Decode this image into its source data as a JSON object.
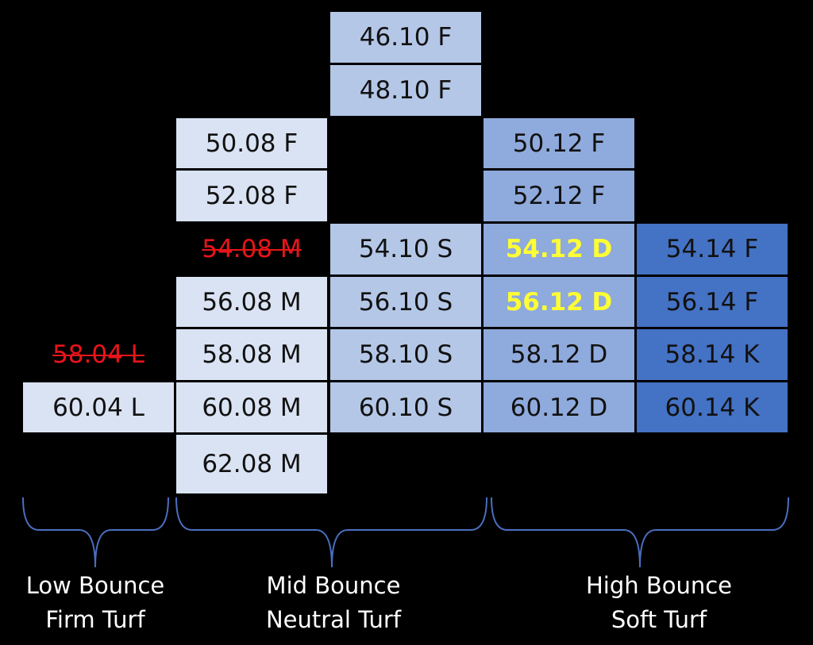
{
  "cells": [
    "46.10 F",
    "48.10 F",
    "50.08 F",
    "50.12 F",
    "52.08 F",
    "52.12 F",
    "54.08 M",
    "54.10 S",
    "54.12 D",
    "54.14 F",
    "56.08 M",
    "56.10 S",
    "56.12 D",
    "56.14 F",
    "58.04 L",
    "58.08 M",
    "58.10 S",
    "58.12 D",
    "58.14 K",
    "60.04 L",
    "60.08 M",
    "60.10 S",
    "60.12 D",
    "60.14 K",
    "62.08 M"
  ],
  "groups": [
    {
      "line1": "Low Bounce",
      "line2": "Firm Turf"
    },
    {
      "line1": "Mid Bounce",
      "line2": "Neutral Turf"
    },
    {
      "line1": "High Bounce",
      "line2": "Soft Turf"
    }
  ]
}
